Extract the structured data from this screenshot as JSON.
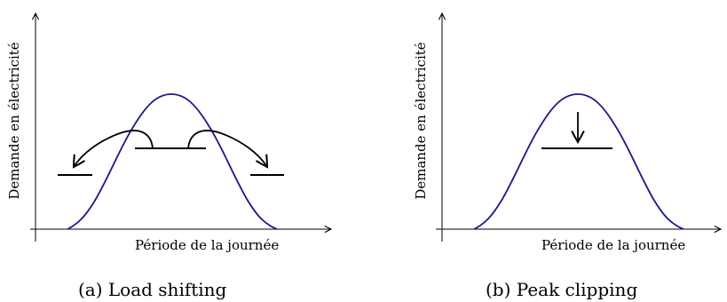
{
  "panel_a": {
    "ylabel": "Demande en électricité",
    "xlabel": "Période de la journée",
    "caption": "(a) Load shifting",
    "demand_curve_color": "#1a1a8c"
  },
  "panel_b": {
    "ylabel": "Demande en électricité",
    "xlabel": "Période de la journée",
    "caption": "(b) Peak clipping",
    "demand_curve_color": "#1a1a8c"
  }
}
